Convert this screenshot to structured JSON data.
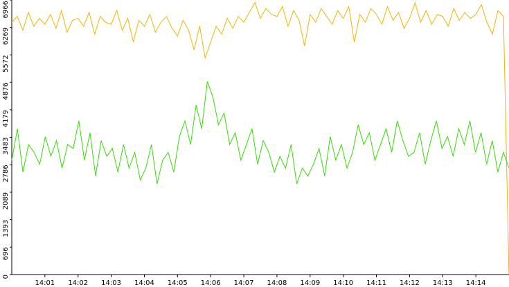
{
  "chart_data": {
    "type": "line",
    "xlim": [
      "14:00",
      "14:15"
    ],
    "xticks": [
      "14:01",
      "14:02",
      "14:03",
      "14:04",
      "14:05",
      "14:06",
      "14:07",
      "14:08",
      "14:09",
      "14:10",
      "14:11",
      "14:12",
      "14:13",
      "14:14"
    ],
    "ylim": [
      0,
      6966
    ],
    "yticks": [
      0,
      696,
      1393,
      2089,
      2786,
      3483,
      4179,
      4876,
      5572,
      6269,
      6966
    ],
    "series": [
      {
        "color": "#f0b400",
        "values": [
          6400,
          6550,
          6200,
          6650,
          6300,
          6500,
          6350,
          6600,
          6250,
          6700,
          6150,
          6450,
          6500,
          6300,
          6650,
          6100,
          6550,
          6400,
          6350,
          6700,
          6200,
          6500,
          5900,
          6450,
          6300,
          6600,
          6150,
          6400,
          6550,
          6250,
          6050,
          6450,
          6200,
          5700,
          6300,
          5500,
          5900,
          6300,
          6100,
          6500,
          6250,
          6550,
          6400,
          6650,
          6900,
          6500,
          6750,
          6600,
          6550,
          6800,
          6300,
          6700,
          6450,
          5800,
          6600,
          6400,
          6750,
          6550,
          6350,
          6700,
          6500,
          6800,
          5900,
          6600,
          6400,
          6750,
          6600,
          6350,
          6800,
          6450,
          6650,
          6250,
          6500,
          6900,
          6400,
          6700,
          6350,
          6600,
          6550,
          6300,
          6750,
          6450,
          6650,
          6500,
          6600,
          6850,
          6400,
          6100,
          6700,
          6550,
          0
        ]
      },
      {
        "color": "#33dd00",
        "values": [
          2900,
          3700,
          2600,
          3300,
          3100,
          2800,
          3500,
          3000,
          3400,
          2700,
          3300,
          3200,
          3900,
          2900,
          3600,
          2500,
          3400,
          3000,
          3200,
          2600,
          3300,
          2700,
          3100,
          2400,
          2700,
          3300,
          2300,
          2900,
          3100,
          2600,
          3500,
          3900,
          3300,
          4300,
          3700,
          4900,
          4500,
          3800,
          4100,
          3300,
          3600,
          2900,
          3300,
          3700,
          2800,
          3400,
          3100,
          2600,
          3000,
          2700,
          3300,
          2300,
          2700,
          2500,
          2800,
          3200,
          2500,
          3500,
          2900,
          3300,
          2700,
          3100,
          3800,
          3300,
          3600,
          2900,
          3300,
          3700,
          3100,
          3900,
          3400,
          3000,
          3100,
          3600,
          2800,
          3400,
          3900,
          3200,
          3500,
          3000,
          3700,
          3300,
          3900,
          3100,
          3600,
          2800,
          3400,
          2600,
          3100,
          2700
        ]
      }
    ]
  }
}
